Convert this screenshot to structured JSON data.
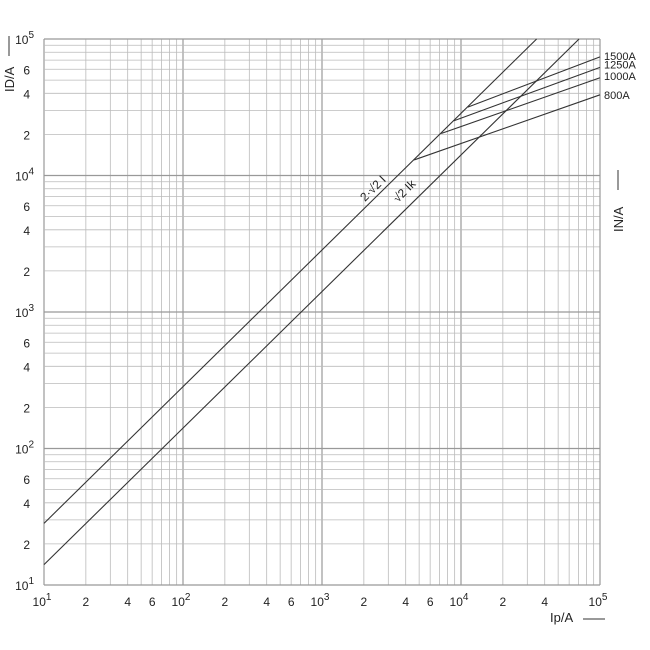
{
  "chart_data": {
    "type": "line",
    "xscale": "log",
    "yscale": "log",
    "xlim": [
      10,
      100000
    ],
    "ylim": [
      10,
      100000
    ],
    "grid": true,
    "xlabel": "Ip/A",
    "ylabel": "ID/A",
    "right_label": "IN/A",
    "x_ticks": [
      {
        "v": 10,
        "base": "10",
        "exp": "1"
      },
      {
        "v": 20,
        "t": "2"
      },
      {
        "v": 40,
        "t": "4"
      },
      {
        "v": 60,
        "t": "6"
      },
      {
        "v": 100,
        "base": "10",
        "exp": "2"
      },
      {
        "v": 200,
        "t": "2"
      },
      {
        "v": 400,
        "t": "4"
      },
      {
        "v": 600,
        "t": "6"
      },
      {
        "v": 1000,
        "base": "10",
        "exp": "3"
      },
      {
        "v": 2000,
        "t": "2"
      },
      {
        "v": 4000,
        "t": "4"
      },
      {
        "v": 6000,
        "t": "6"
      },
      {
        "v": 10000,
        "base": "10",
        "exp": "4"
      },
      {
        "v": 20000,
        "t": "2"
      },
      {
        "v": 40000,
        "t": "4"
      },
      {
        "v": 100000,
        "base": "10",
        "exp": "5"
      }
    ],
    "y_ticks": [
      {
        "v": 10,
        "base": "10",
        "exp": "1"
      },
      {
        "v": 20,
        "t": "2"
      },
      {
        "v": 40,
        "t": "4"
      },
      {
        "v": 60,
        "t": "6"
      },
      {
        "v": 100,
        "base": "10",
        "exp": "2"
      },
      {
        "v": 200,
        "t": "2"
      },
      {
        "v": 400,
        "t": "4"
      },
      {
        "v": 600,
        "t": "6"
      },
      {
        "v": 1000,
        "base": "10",
        "exp": "3"
      },
      {
        "v": 2000,
        "t": "2"
      },
      {
        "v": 4000,
        "t": "4"
      },
      {
        "v": 6000,
        "t": "6"
      },
      {
        "v": 10000,
        "base": "10",
        "exp": "4"
      },
      {
        "v": 20000,
        "t": "2"
      },
      {
        "v": 40000,
        "t": "4"
      },
      {
        "v": 60000,
        "t": "6"
      },
      {
        "v": 100000,
        "base": "10",
        "exp": "5"
      }
    ],
    "series": [
      {
        "name": "2·√2 I",
        "x": [
          10,
          35000
        ],
        "y": [
          28.3,
          100000
        ]
      },
      {
        "name": "√2 Ik",
        "x": [
          10,
          70700
        ],
        "y": [
          14.1,
          100000
        ]
      },
      {
        "name": "800A",
        "x": [
          4600,
          100000
        ],
        "y": [
          13000,
          39000
        ]
      },
      {
        "name": "1000A",
        "x": [
          7200,
          100000
        ],
        "y": [
          20300,
          52000
        ]
      },
      {
        "name": "1250A",
        "x": [
          8900,
          100000
        ],
        "y": [
          25200,
          62000
        ]
      },
      {
        "name": "1500A",
        "x": [
          11200,
          100000
        ],
        "y": [
          31700,
          74000
        ]
      }
    ]
  }
}
